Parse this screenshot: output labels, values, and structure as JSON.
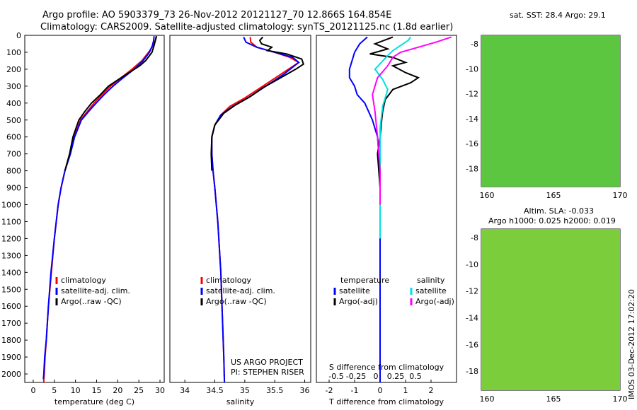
{
  "header": {
    "line1": "Argo profile: AO 5903379_73 26-Nov-2012 20121127_70 12.866S 164.854E",
    "line2": "Climatology: CARS2009. Satellite-adjusted climatology: synTS_20121125.nc (1.8d earlier)"
  },
  "chart_data": [
    {
      "type": "line",
      "xlabel": "temperature (deg C)",
      "ylim": [
        2050,
        0
      ],
      "xlim": [
        -2,
        31
      ],
      "xticks": [
        0,
        5,
        10,
        15,
        20,
        25,
        30
      ],
      "yticks": [
        0,
        100,
        200,
        300,
        400,
        500,
        600,
        700,
        800,
        900,
        1000,
        1100,
        1200,
        1300,
        1400,
        1500,
        1600,
        1700,
        1800,
        1900,
        2000
      ],
      "legend": [
        "climatology",
        "satellite-adj. clim.",
        "Argo(..raw -QC)"
      ],
      "series": [
        {
          "name": "climatology",
          "color": "#ff0000",
          "x": [
            29.1,
            28.9,
            28.4,
            27.3,
            25.7,
            23.4,
            20.8,
            18.3,
            16.3,
            14.4,
            12.8,
            11.2,
            9.7,
            8.7,
            7.5,
            6.6,
            5.9,
            5.0,
            4.3,
            3.6,
            3.1,
            2.8,
            2.6,
            2.5,
            2.5
          ],
          "y": [
            5,
            30,
            60,
            100,
            150,
            200,
            250,
            300,
            350,
            400,
            450,
            500,
            600,
            700,
            800,
            900,
            1000,
            1200,
            1400,
            1600,
            1800,
            1900,
            2000,
            2030,
            2050
          ]
        },
        {
          "name": "satellite-adj. clim.",
          "color": "#0000ff",
          "x": [
            28.6,
            28.5,
            28.2,
            27.5,
            26.0,
            23.9,
            21.3,
            18.9,
            16.8,
            14.9,
            13.1,
            11.4,
            9.8,
            8.8,
            7.5,
            6.6,
            5.9,
            5.0,
            4.2,
            3.6,
            3.1,
            2.7,
            2.5,
            2.4
          ],
          "y": [
            5,
            30,
            60,
            100,
            150,
            200,
            250,
            300,
            350,
            400,
            450,
            500,
            600,
            700,
            800,
            900,
            1000,
            1200,
            1400,
            1600,
            1800,
            1900,
            2000,
            2030
          ]
        },
        {
          "name": "Argo(..raw -QC)",
          "color": "#000000",
          "x": [
            29.2,
            29.0,
            28.8,
            28.6,
            28.1,
            26.6,
            25.2,
            22.7,
            20.2,
            17.8,
            15.9,
            13.8,
            12.2,
            10.8,
            9.4,
            8.6,
            7.5
          ],
          "y": [
            5,
            20,
            40,
            60,
            100,
            150,
            180,
            220,
            260,
            300,
            350,
            400,
            450,
            500,
            600,
            700,
            800
          ]
        }
      ]
    },
    {
      "type": "line",
      "xlabel": "salinity",
      "ylim": [
        2050,
        0
      ],
      "xlim": [
        33.75,
        36.1
      ],
      "xticks": [
        34,
        34.5,
        35,
        35.5,
        36
      ],
      "legend": [
        "climatology",
        "satellite-adj. clim.",
        "Argo(..raw -QC)"
      ],
      "series": [
        {
          "name": "climatology",
          "color": "#ff0000",
          "x": [
            35.09,
            35.1,
            35.2,
            35.5,
            35.75,
            35.9,
            35.6,
            35.3,
            35.0,
            34.75,
            34.6,
            34.5,
            34.45,
            34.45,
            34.47,
            34.5,
            34.55,
            34.6,
            34.63,
            34.65,
            34.66
          ],
          "y": [
            10,
            40,
            70,
            100,
            130,
            160,
            230,
            300,
            370,
            420,
            470,
            530,
            600,
            700,
            800,
            900,
            1100,
            1400,
            1700,
            1900,
            2050
          ]
        },
        {
          "name": "satellite-adj. clim.",
          "color": "#0000ff",
          "x": [
            34.98,
            35.02,
            35.2,
            35.5,
            35.8,
            35.9,
            35.65,
            35.35,
            35.05,
            34.8,
            34.6,
            34.5,
            34.45,
            34.45,
            34.47,
            34.5,
            34.55,
            34.6,
            34.63,
            34.65,
            34.66
          ],
          "y": [
            10,
            40,
            70,
            100,
            130,
            160,
            230,
            300,
            370,
            420,
            470,
            530,
            600,
            700,
            800,
            900,
            1100,
            1400,
            1700,
            1900,
            2050
          ]
        },
        {
          "name": "Argo(..raw -QC)",
          "color": "#000000",
          "x": [
            35.3,
            35.25,
            35.28,
            35.45,
            35.38,
            35.7,
            35.95,
            35.98,
            35.85,
            35.7,
            35.5,
            35.3,
            35.1,
            34.85,
            34.65,
            34.5,
            34.45,
            34.44,
            34.45
          ],
          "y": [
            10,
            30,
            50,
            70,
            90,
            110,
            140,
            170,
            200,
            230,
            270,
            310,
            360,
            410,
            460,
            530,
            600,
            700,
            800
          ]
        }
      ]
    },
    {
      "type": "line",
      "xlabel": "T difference from climatology",
      "xlabel_top": "S difference from climatology",
      "ylim": [
        2050,
        0
      ],
      "xlim": [
        -2.5,
        3.0
      ],
      "xticks": [
        -2,
        -1,
        0,
        1,
        2
      ],
      "xticks_s": [
        "-0.5",
        "-0.25",
        "0",
        "0.25",
        "0.5"
      ],
      "legend_groups": [
        {
          "title": "temperature",
          "entries": [
            "satellite",
            "Argo(-adj)"
          ]
        },
        {
          "title": "salinity",
          "entries": [
            "satellite",
            "Argo(-adj)"
          ]
        }
      ],
      "series": [
        {
          "name": "temperature satellite",
          "color": "#0000ff",
          "x": [
            -0.5,
            -0.8,
            -1.0,
            -1.1,
            -1.2,
            -1.2,
            -1.0,
            -0.9,
            -0.6,
            -0.3,
            -0.1,
            0.0,
            0.0,
            0.0
          ],
          "y": [
            10,
            50,
            100,
            150,
            200,
            250,
            300,
            350,
            400,
            500,
            600,
            800,
            1200,
            2050
          ]
        },
        {
          "name": "temperature Argo(-adj)",
          "color": "#000000",
          "x": [
            0.5,
            -0.2,
            0.3,
            -0.4,
            0.5,
            1.0,
            0.5,
            1.0,
            1.5,
            1.2,
            0.5,
            0.2,
            0.1,
            0.05,
            0.0,
            -0.1,
            0.0,
            0.0
          ],
          "y": [
            10,
            50,
            80,
            110,
            130,
            160,
            180,
            220,
            250,
            280,
            320,
            380,
            450,
            520,
            600,
            700,
            900,
            1200
          ]
        },
        {
          "name": "salinity satellite",
          "color": "#00e0e0",
          "x": [
            1.2,
            1.1,
            0.8,
            0.5,
            0.3,
            -0.2,
            0.1,
            0.3,
            0.1,
            0.0,
            0.0,
            0.0
          ],
          "y": [
            10,
            30,
            60,
            90,
            120,
            200,
            260,
            320,
            420,
            550,
            800,
            1200
          ]
        },
        {
          "name": "salinity Argo(-adj)",
          "color": "#ff00ff",
          "x": [
            2.8,
            2.2,
            1.5,
            0.8,
            0.5,
            0.3,
            -0.1,
            -0.3,
            -0.2,
            -0.1,
            0.0,
            0.0
          ],
          "y": [
            10,
            40,
            70,
            100,
            130,
            180,
            250,
            350,
            450,
            600,
            800,
            1000
          ]
        }
      ]
    }
  ],
  "maps": {
    "top_title": "sat. SST: 28.4 Argo: 29.1",
    "bottom_title_1": "Altim. SLA: -0.033",
    "bottom_title_2": "Argo h1000: 0.025 h2000: 0.019",
    "x_ticks": [
      "160",
      "165",
      "170"
    ],
    "y_ticks": [
      "-8",
      "-10",
      "-12",
      "-14",
      "-16",
      "-18"
    ]
  },
  "credits": {
    "project": "US ARGO PROJECT",
    "pi": "PI: STEPHEN RISER",
    "stamp": "IMOS 03-Dec-2012 17:02:20"
  },
  "colors": {
    "climatology": "#ff0000",
    "satellite": "#0000ff",
    "argo": "#000000",
    "salinity_satellite": "#00e0e0",
    "salinity_argo": "#ff00ff"
  }
}
